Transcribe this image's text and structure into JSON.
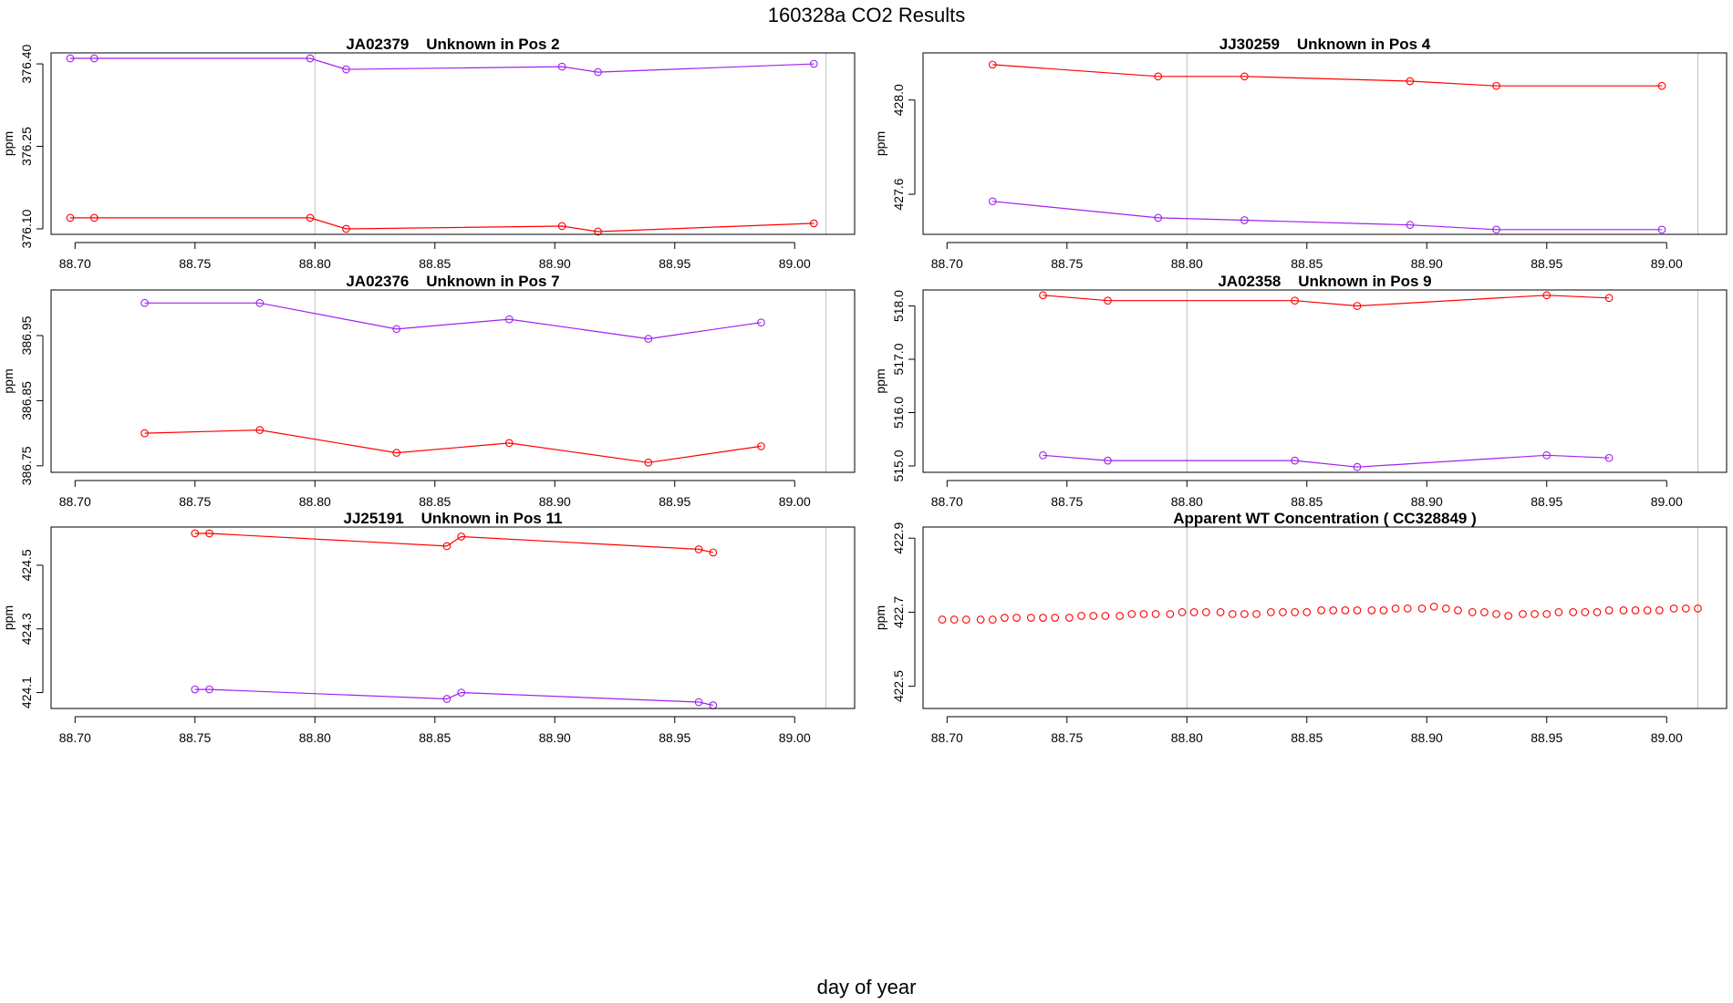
{
  "figure": {
    "title": "160328a  CO2 Results",
    "xlabel": "day of year"
  },
  "colors": {
    "series_red": "#ff0000",
    "series_purple": "#a020f0",
    "ref_line": "#bebebe",
    "axis": "#000000"
  },
  "chart_data": [
    {
      "type": "line",
      "title": "JA02379    Unknown in Pos 2",
      "xlabel": "",
      "ylabel": "ppm",
      "xlim": [
        88.69,
        89.025
      ],
      "ylim": [
        376.09,
        376.42
      ],
      "xticks": [
        "88.70",
        "88.75",
        "88.80",
        "88.85",
        "88.90",
        "88.95",
        "89.00"
      ],
      "yticks": [
        "376.10",
        "376.25",
        "376.40"
      ],
      "ref_x": [
        88.8,
        89.013
      ],
      "series": [
        {
          "color": "red",
          "x": [
            88.698,
            88.708,
            88.798,
            88.813,
            88.903,
            88.918,
            89.008
          ],
          "y": [
            376.12,
            376.12,
            376.12,
            376.1,
            376.105,
            376.095,
            376.11
          ]
        },
        {
          "color": "purple",
          "x": [
            88.698,
            88.708,
            88.798,
            88.813,
            88.903,
            88.918,
            89.008
          ],
          "y": [
            376.41,
            376.41,
            376.41,
            376.39,
            376.395,
            376.385,
            376.4
          ]
        }
      ]
    },
    {
      "type": "line",
      "title": "JJ30259    Unknown in Pos 4",
      "xlabel": "",
      "ylabel": "ppm",
      "xlim": [
        88.69,
        89.025
      ],
      "ylim": [
        427.43,
        428.2
      ],
      "xticks": [
        "88.70",
        "88.75",
        "88.80",
        "88.85",
        "88.90",
        "88.95",
        "89.00"
      ],
      "yticks": [
        "427.6",
        "428.0"
      ],
      "ref_x": [
        88.8,
        89.013
      ],
      "series": [
        {
          "color": "red",
          "x": [
            88.719,
            88.788,
            88.824,
            88.893,
            88.929,
            88.998
          ],
          "y": [
            428.15,
            428.1,
            428.1,
            428.08,
            428.06,
            428.06
          ]
        },
        {
          "color": "purple",
          "x": [
            88.719,
            88.788,
            88.824,
            88.893,
            88.929,
            88.998
          ],
          "y": [
            427.57,
            427.5,
            427.49,
            427.47,
            427.45,
            427.45
          ]
        }
      ]
    },
    {
      "type": "line",
      "title": "JA02376    Unknown in Pos 7",
      "xlabel": "",
      "ylabel": "ppm",
      "xlim": [
        88.69,
        89.025
      ],
      "ylim": [
        386.74,
        387.02
      ],
      "xticks": [
        "88.70",
        "88.75",
        "88.80",
        "88.85",
        "88.90",
        "88.95",
        "89.00"
      ],
      "yticks": [
        "386.75",
        "386.85",
        "386.95"
      ],
      "ref_x": [
        88.8,
        89.013
      ],
      "series": [
        {
          "color": "red",
          "x": [
            88.729,
            88.777,
            88.834,
            88.881,
            88.939,
            88.986
          ],
          "y": [
            386.8,
            386.805,
            386.77,
            386.785,
            386.755,
            386.78
          ]
        },
        {
          "color": "purple",
          "x": [
            88.729,
            88.777,
            88.834,
            88.881,
            88.939,
            88.986
          ],
          "y": [
            387.0,
            387.0,
            386.96,
            386.975,
            386.945,
            386.97
          ]
        }
      ]
    },
    {
      "type": "line",
      "title": "JA02358    Unknown in Pos 9",
      "xlabel": "",
      "ylabel": "ppm",
      "xlim": [
        88.69,
        89.025
      ],
      "ylim": [
        514.88,
        518.3
      ],
      "xticks": [
        "88.70",
        "88.75",
        "88.80",
        "88.85",
        "88.90",
        "88.95",
        "89.00"
      ],
      "yticks": [
        "515.0",
        "516.0",
        "517.0",
        "518.0"
      ],
      "ref_x": [
        88.8,
        89.013
      ],
      "series": [
        {
          "color": "red",
          "x": [
            88.74,
            88.767,
            88.845,
            88.871,
            88.95,
            88.976
          ],
          "y": [
            518.2,
            518.1,
            518.1,
            518.0,
            518.2,
            518.15
          ]
        },
        {
          "color": "purple",
          "x": [
            88.74,
            88.767,
            88.845,
            88.871,
            88.95,
            88.976
          ],
          "y": [
            515.2,
            515.1,
            515.1,
            514.98,
            515.2,
            515.15
          ]
        }
      ]
    },
    {
      "type": "line",
      "title": "JJ25191    Unknown in Pos 11",
      "xlabel": "",
      "ylabel": "ppm",
      "xlim": [
        88.69,
        89.025
      ],
      "ylim": [
        424.05,
        424.62
      ],
      "xticks": [
        "88.70",
        "88.75",
        "88.80",
        "88.85",
        "88.90",
        "88.95",
        "89.00"
      ],
      "yticks": [
        "424.1",
        "424.3",
        "424.5"
      ],
      "ref_x": [
        88.8,
        89.013
      ],
      "series": [
        {
          "color": "red",
          "x": [
            88.75,
            88.756,
            88.855,
            88.861,
            88.96,
            88.966
          ],
          "y": [
            424.6,
            424.6,
            424.56,
            424.59,
            424.55,
            424.54
          ]
        },
        {
          "color": "purple",
          "x": [
            88.75,
            88.756,
            88.855,
            88.861,
            88.96,
            88.966
          ],
          "y": [
            424.11,
            424.11,
            424.08,
            424.1,
            424.07,
            424.06
          ]
        }
      ]
    },
    {
      "type": "scatter",
      "title": "Apparent WT Concentration ( CC328849 )",
      "xlabel": "",
      "ylabel": "ppm",
      "xlim": [
        88.69,
        89.025
      ],
      "ylim": [
        422.44,
        422.93
      ],
      "xticks": [
        "88.70",
        "88.75",
        "88.80",
        "88.85",
        "88.90",
        "88.95",
        "89.00"
      ],
      "yticks": [
        "422.5",
        "422.7",
        "422.9"
      ],
      "ref_x": [
        88.8,
        89.013
      ],
      "series": [
        {
          "color": "red",
          "x": [
            88.698,
            88.703,
            88.708,
            88.714,
            88.719,
            88.724,
            88.729,
            88.735,
            88.74,
            88.745,
            88.751,
            88.756,
            88.761,
            88.766,
            88.772,
            88.777,
            88.782,
            88.787,
            88.793,
            88.798,
            88.803,
            88.808,
            88.814,
            88.819,
            88.824,
            88.829,
            88.835,
            88.84,
            88.845,
            88.85,
            88.856,
            88.861,
            88.866,
            88.871,
            88.877,
            88.882,
            88.887,
            88.892,
            88.898,
            88.903,
            88.908,
            88.913,
            88.919,
            88.924,
            88.929,
            88.934,
            88.94,
            88.945,
            88.95,
            88.955,
            88.961,
            88.966,
            88.971,
            88.976,
            88.982,
            88.987,
            88.992,
            88.997,
            89.003,
            89.008,
            89.013
          ],
          "y": [
            422.68,
            422.68,
            422.68,
            422.68,
            422.68,
            422.685,
            422.685,
            422.685,
            422.685,
            422.685,
            422.685,
            422.69,
            422.69,
            422.69,
            422.69,
            422.695,
            422.695,
            422.695,
            422.695,
            422.7,
            422.7,
            422.7,
            422.7,
            422.695,
            422.695,
            422.695,
            422.7,
            422.7,
            422.7,
            422.7,
            422.705,
            422.705,
            422.705,
            422.705,
            422.705,
            422.705,
            422.71,
            422.71,
            422.71,
            422.715,
            422.71,
            422.705,
            422.7,
            422.7,
            422.695,
            422.69,
            422.695,
            422.695,
            422.695,
            422.7,
            422.7,
            422.7,
            422.7,
            422.705,
            422.705,
            422.705,
            422.705,
            422.705,
            422.71,
            422.71,
            422.71
          ]
        }
      ]
    }
  ]
}
